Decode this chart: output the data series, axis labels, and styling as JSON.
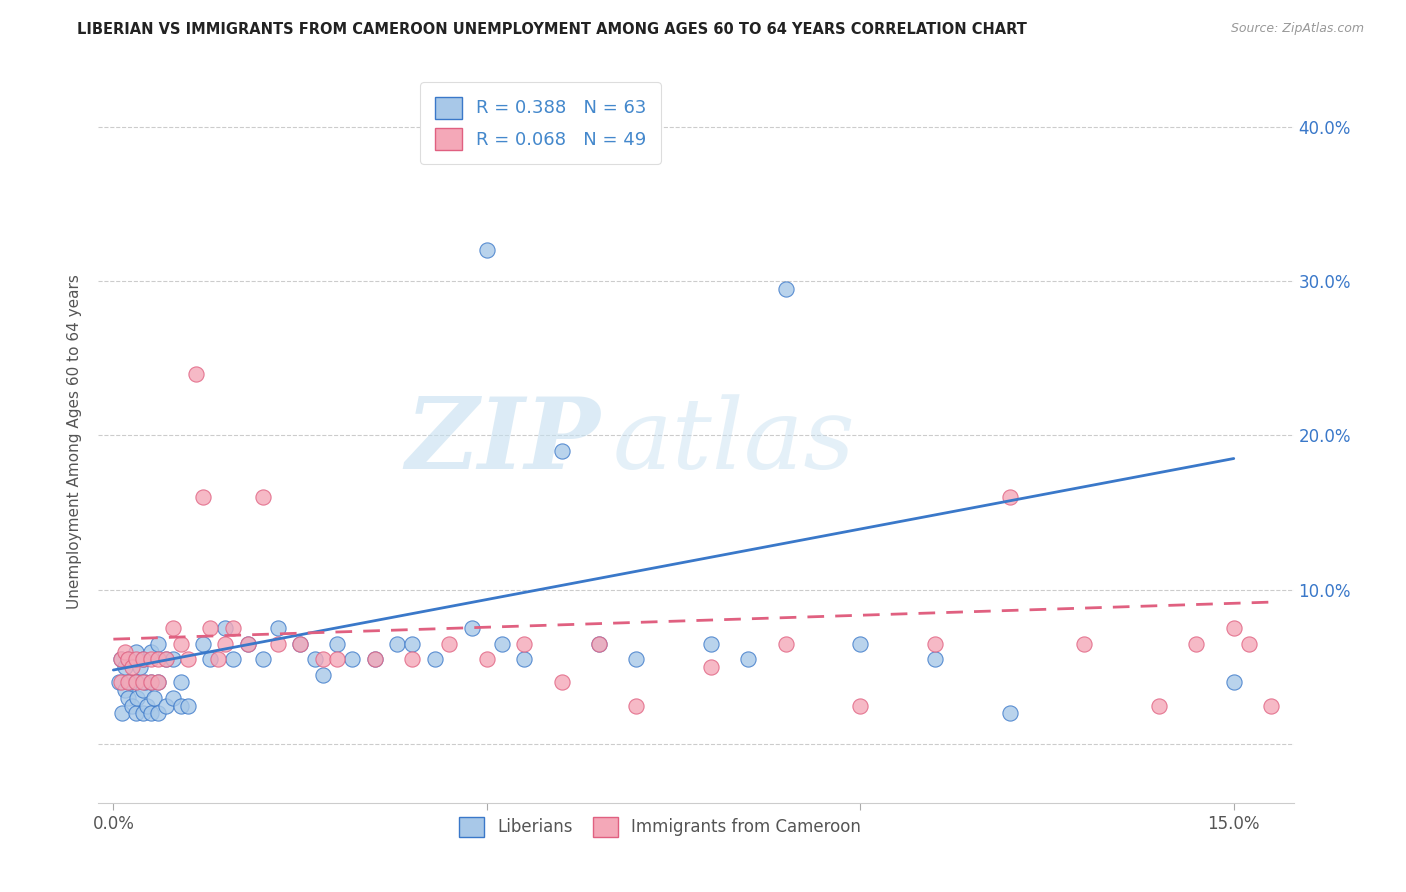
{
  "title": "LIBERIAN VS IMMIGRANTS FROM CAMEROON UNEMPLOYMENT AMONG AGES 60 TO 64 YEARS CORRELATION CHART",
  "source": "Source: ZipAtlas.com",
  "ylabel": "Unemployment Among Ages 60 to 64 years",
  "xlim": [
    -0.002,
    0.158
  ],
  "ylim": [
    -0.038,
    0.43
  ],
  "blue_color": "#a8c8e8",
  "pink_color": "#f4a8b8",
  "blue_line_color": "#3a78c9",
  "pink_line_color": "#e06080",
  "watermark_zip": "ZIP",
  "watermark_atlas": "atlas",
  "legend_r_blue": "R = 0.388",
  "legend_n_blue": "N = 63",
  "legend_r_pink": "R = 0.068",
  "legend_n_pink": "N = 49",
  "blue_x": [
    0.0008,
    0.001,
    0.0012,
    0.0015,
    0.0015,
    0.002,
    0.002,
    0.0022,
    0.0025,
    0.003,
    0.003,
    0.003,
    0.0032,
    0.0035,
    0.004,
    0.004,
    0.004,
    0.0042,
    0.0045,
    0.005,
    0.005,
    0.005,
    0.0055,
    0.006,
    0.006,
    0.006,
    0.007,
    0.007,
    0.008,
    0.008,
    0.009,
    0.009,
    0.01,
    0.012,
    0.013,
    0.015,
    0.016,
    0.018,
    0.02,
    0.022,
    0.025,
    0.027,
    0.028,
    0.03,
    0.032,
    0.035,
    0.038,
    0.04,
    0.043,
    0.048,
    0.05,
    0.052,
    0.055,
    0.06,
    0.065,
    0.07,
    0.08,
    0.085,
    0.09,
    0.1,
    0.11,
    0.12,
    0.15
  ],
  "blue_y": [
    0.04,
    0.055,
    0.02,
    0.035,
    0.05,
    0.03,
    0.055,
    0.04,
    0.025,
    0.02,
    0.04,
    0.06,
    0.03,
    0.05,
    0.02,
    0.035,
    0.055,
    0.04,
    0.025,
    0.02,
    0.04,
    0.06,
    0.03,
    0.02,
    0.04,
    0.065,
    0.025,
    0.055,
    0.03,
    0.055,
    0.025,
    0.04,
    0.025,
    0.065,
    0.055,
    0.075,
    0.055,
    0.065,
    0.055,
    0.075,
    0.065,
    0.055,
    0.045,
    0.065,
    0.055,
    0.055,
    0.065,
    0.065,
    0.055,
    0.075,
    0.32,
    0.065,
    0.055,
    0.19,
    0.065,
    0.055,
    0.065,
    0.055,
    0.295,
    0.065,
    0.055,
    0.02,
    0.04
  ],
  "pink_x": [
    0.001,
    0.001,
    0.0015,
    0.002,
    0.002,
    0.0025,
    0.003,
    0.003,
    0.004,
    0.004,
    0.005,
    0.005,
    0.006,
    0.006,
    0.007,
    0.008,
    0.009,
    0.01,
    0.011,
    0.012,
    0.013,
    0.014,
    0.015,
    0.016,
    0.018,
    0.02,
    0.022,
    0.025,
    0.028,
    0.03,
    0.035,
    0.04,
    0.045,
    0.05,
    0.055,
    0.06,
    0.065,
    0.07,
    0.08,
    0.09,
    0.1,
    0.11,
    0.12,
    0.13,
    0.14,
    0.145,
    0.15,
    0.152,
    0.155
  ],
  "pink_y": [
    0.04,
    0.055,
    0.06,
    0.04,
    0.055,
    0.05,
    0.04,
    0.055,
    0.04,
    0.055,
    0.04,
    0.055,
    0.04,
    0.055,
    0.055,
    0.075,
    0.065,
    0.055,
    0.24,
    0.16,
    0.075,
    0.055,
    0.065,
    0.075,
    0.065,
    0.16,
    0.065,
    0.065,
    0.055,
    0.055,
    0.055,
    0.055,
    0.065,
    0.055,
    0.065,
    0.04,
    0.065,
    0.025,
    0.05,
    0.065,
    0.025,
    0.065,
    0.16,
    0.065,
    0.025,
    0.065,
    0.075,
    0.065,
    0.025
  ],
  "blue_trend_x": [
    0.0,
    0.15
  ],
  "blue_trend_y": [
    0.048,
    0.185
  ],
  "pink_trend_x": [
    0.0,
    0.155
  ],
  "pink_trend_y": [
    0.068,
    0.092
  ]
}
